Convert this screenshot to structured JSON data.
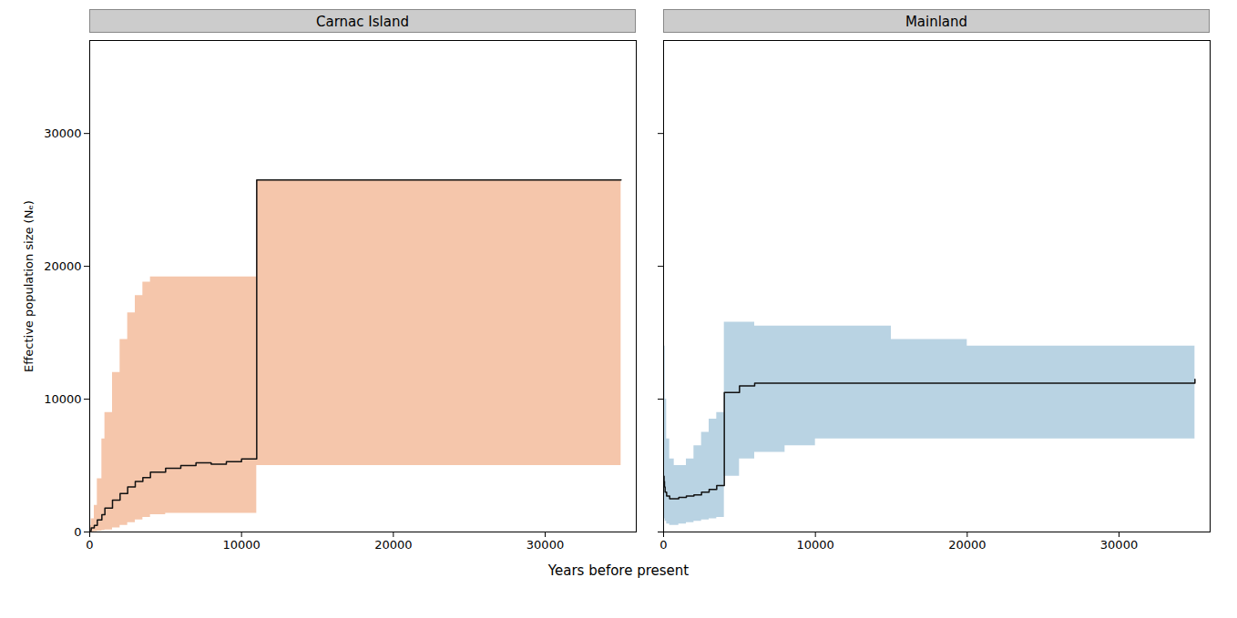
{
  "chart_data": [
    {
      "type": "step",
      "title": "Carnac Island",
      "ylabel": "Effective population size (Nₑ)",
      "xlabel": "Years before present",
      "xlim": [
        0,
        36000
      ],
      "xticks": [
        0,
        10000,
        20000,
        30000
      ],
      "ylim": [
        0,
        37000
      ],
      "yticks": [
        0,
        10000,
        20000,
        30000
      ],
      "x": [
        0,
        100,
        300,
        500,
        800,
        1000,
        1500,
        2000,
        2500,
        3000,
        3500,
        4000,
        5000,
        6000,
        7000,
        8000,
        9000,
        10000,
        11000,
        35000
      ],
      "series": [
        {
          "type": "area",
          "color": "#f2b896",
          "upper": [
            500,
            1000,
            2000,
            4000,
            7000,
            9000,
            12000,
            14500,
            16500,
            17800,
            18800,
            19200,
            19200,
            19200,
            19200,
            19200,
            19200,
            19200,
            26500,
            26500
          ],
          "lower": [
            0,
            10,
            30,
            60,
            100,
            150,
            300,
            500,
            700,
            900,
            1100,
            1300,
            1400,
            1400,
            1400,
            1400,
            1400,
            1400,
            5000,
            5000
          ]
        },
        {
          "type": "line",
          "color": "#111111",
          "values": [
            100,
            300,
            500,
            900,
            1300,
            1800,
            2400,
            2900,
            3400,
            3800,
            4100,
            4500,
            4800,
            5000,
            5200,
            5100,
            5300,
            5500,
            26500,
            26500
          ]
        }
      ]
    },
    {
      "type": "step",
      "title": "Mainland",
      "tick_labels": "x",
      "xlim": [
        0,
        36000
      ],
      "xticks": [
        0,
        10000,
        20000,
        30000
      ],
      "ylim": [
        0,
        37000
      ],
      "yticks": [
        0,
        10000,
        20000,
        30000
      ],
      "x": [
        0,
        30,
        60,
        100,
        200,
        400,
        700,
        1000,
        1500,
        2000,
        2500,
        3000,
        3500,
        4000,
        5000,
        6000,
        8000,
        10000,
        15000,
        20000,
        25000,
        30000,
        35000
      ],
      "series": [
        {
          "type": "area",
          "color": "#a8c8dc",
          "upper": [
            20000,
            18000,
            14000,
            10000,
            7000,
            5500,
            5000,
            5000,
            5500,
            6500,
            7500,
            8500,
            9000,
            15800,
            15800,
            15500,
            15500,
            15500,
            14500,
            14000,
            14000,
            14000,
            14000
          ],
          "lower": [
            1500,
            1200,
            1000,
            800,
            600,
            500,
            500,
            600,
            700,
            800,
            900,
            1000,
            1100,
            4200,
            5500,
            6000,
            6500,
            7000,
            7000,
            7000,
            7000,
            7000,
            7000
          ]
        },
        {
          "type": "line",
          "color": "#111111",
          "values": [
            4200,
            3800,
            3400,
            3000,
            2700,
            2500,
            2500,
            2600,
            2700,
            2800,
            3000,
            3200,
            3500,
            10500,
            11000,
            11200,
            11200,
            11200,
            11200,
            11200,
            11200,
            11200,
            11500
          ]
        }
      ]
    }
  ]
}
